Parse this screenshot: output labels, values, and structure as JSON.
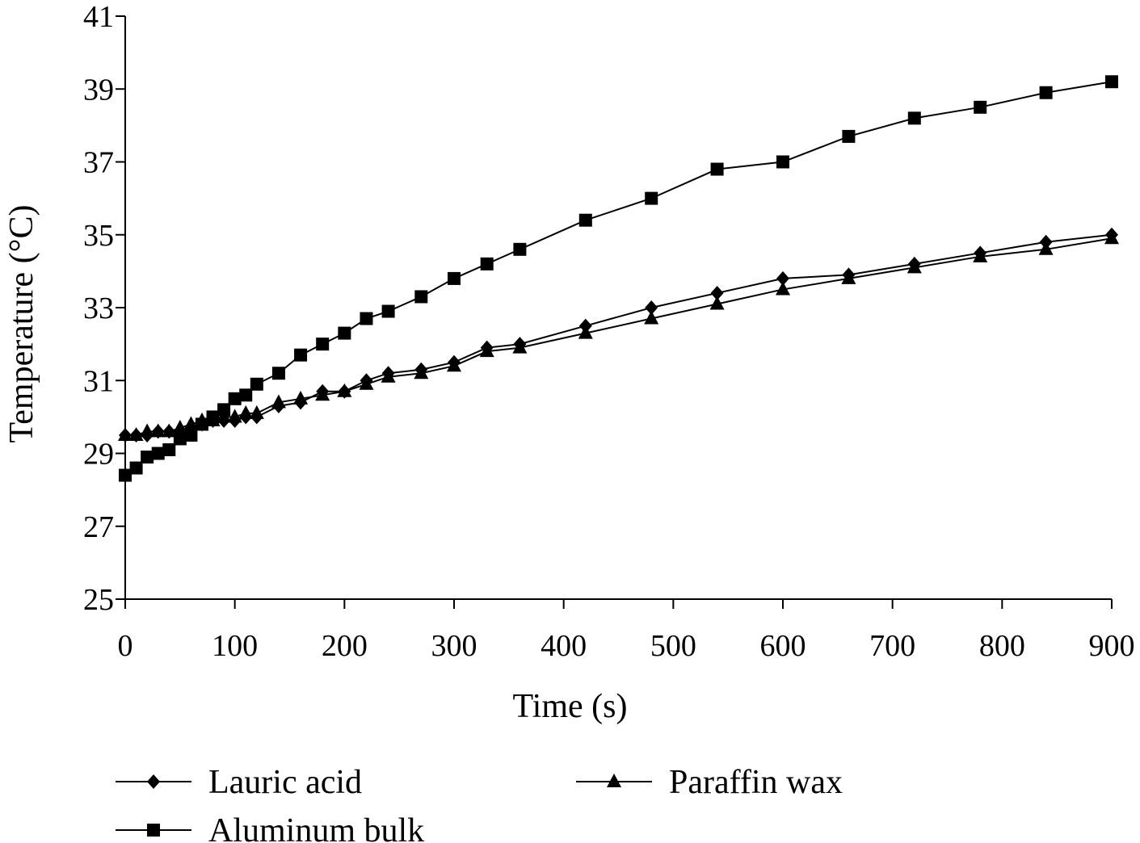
{
  "chart_data": {
    "type": "line",
    "title": "",
    "xlabel": "Time (s)",
    "ylabel": "Temperature (°C)",
    "xlim": [
      0,
      900
    ],
    "ylim": [
      25,
      41
    ],
    "x_ticks": [
      0,
      100,
      200,
      300,
      400,
      500,
      600,
      700,
      800,
      900
    ],
    "y_ticks": [
      25,
      27,
      29,
      31,
      33,
      35,
      37,
      39,
      41
    ],
    "x_tick_labels": [
      "0",
      "100",
      "200",
      "300",
      "400",
      "500",
      "600",
      "700",
      "800",
      "900"
    ],
    "y_tick_labels": [
      "25",
      "27",
      "29",
      "31",
      "33",
      "35",
      "37",
      "39",
      "41"
    ],
    "grid": false,
    "legend_position": "bottom",
    "series": [
      {
        "name": "Lauric acid",
        "marker": "diamond",
        "color": "#000000",
        "x": [
          0,
          10,
          20,
          30,
          40,
          50,
          60,
          70,
          80,
          90,
          100,
          110,
          120,
          140,
          160,
          180,
          200,
          220,
          240,
          270,
          300,
          330,
          360,
          420,
          480,
          540,
          600,
          660,
          720,
          780,
          840,
          900
        ],
        "y": [
          29.5,
          29.5,
          29.5,
          29.6,
          29.6,
          29.6,
          29.7,
          29.8,
          29.9,
          29.9,
          29.9,
          30.0,
          30.0,
          30.3,
          30.4,
          30.7,
          30.7,
          31.0,
          31.2,
          31.3,
          31.5,
          31.9,
          32.0,
          32.5,
          33.0,
          33.4,
          33.8,
          33.9,
          34.2,
          34.5,
          34.8,
          35.0
        ]
      },
      {
        "name": "Aluminum bulk",
        "marker": "square",
        "color": "#000000",
        "x": [
          0,
          10,
          20,
          30,
          40,
          50,
          60,
          70,
          80,
          90,
          100,
          110,
          120,
          140,
          160,
          180,
          200,
          220,
          240,
          270,
          300,
          330,
          360,
          420,
          480,
          540,
          600,
          660,
          720,
          780,
          840,
          900
        ],
        "y": [
          28.4,
          28.6,
          28.9,
          29.0,
          29.1,
          29.4,
          29.5,
          29.8,
          30.0,
          30.2,
          30.5,
          30.6,
          30.9,
          31.2,
          31.7,
          32.0,
          32.3,
          32.7,
          32.9,
          33.3,
          33.8,
          34.2,
          34.6,
          35.4,
          36.0,
          36.8,
          37.0,
          37.7,
          38.2,
          38.5,
          38.9,
          39.2
        ]
      },
      {
        "name": "Paraffin wax",
        "marker": "triangle",
        "color": "#000000",
        "x": [
          0,
          10,
          20,
          30,
          40,
          50,
          60,
          70,
          80,
          90,
          100,
          110,
          120,
          140,
          160,
          180,
          200,
          220,
          240,
          270,
          300,
          330,
          360,
          420,
          480,
          540,
          600,
          660,
          720,
          780,
          840,
          900
        ],
        "y": [
          29.5,
          29.5,
          29.6,
          29.6,
          29.6,
          29.7,
          29.8,
          29.9,
          29.9,
          30.0,
          30.0,
          30.1,
          30.1,
          30.4,
          30.5,
          30.6,
          30.7,
          30.9,
          31.1,
          31.2,
          31.4,
          31.8,
          31.9,
          32.3,
          32.7,
          33.1,
          33.5,
          33.8,
          34.1,
          34.4,
          34.6,
          34.9
        ]
      }
    ]
  }
}
